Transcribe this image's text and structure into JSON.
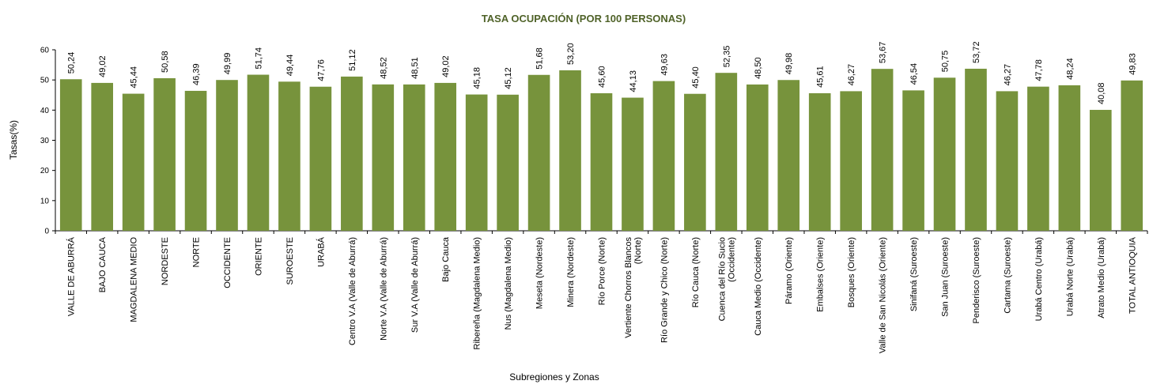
{
  "chart_data": {
    "type": "bar",
    "title": "TASA OCUPACIÓN (POR 100 PERSONAS)",
    "xlabel": "Subregiones y Zonas",
    "ylabel": "Tasas(%)",
    "ylim": [
      0,
      60
    ],
    "yticks": [
      0,
      10,
      20,
      30,
      40,
      50,
      60
    ],
    "grid": false,
    "legend": "none",
    "colors": {
      "bar": "#77933C",
      "title": "#4F6228"
    },
    "categories": [
      [
        "VALLE DE ABURRÁ"
      ],
      [
        "BAJO CAUCA"
      ],
      [
        "MAGDALENA MEDIO"
      ],
      [
        "NORDESTE"
      ],
      [
        "NORTE"
      ],
      [
        "OCCIDENTE"
      ],
      [
        "ORIENTE"
      ],
      [
        "SUROESTE"
      ],
      [
        "URABÁ"
      ],
      [
        "Centro V.A (Valle de Aburrá)"
      ],
      [
        "Norte V.A (Valle de Aburrá)"
      ],
      [
        "Sur V.A (Valle de Aburrá)"
      ],
      [
        "Bajo Cauca"
      ],
      [
        "Ribereña  (Magdalena Medio)"
      ],
      [
        "Nus  (Magdalena Medio)"
      ],
      [
        "Meseta  (Nordeste)"
      ],
      [
        "Minera  (Nordeste)"
      ],
      [
        "Río Porce  (Norte)"
      ],
      [
        "Vertiente Chorros Blancos",
        "(Norte)"
      ],
      [
        "Río Grande y Chico  (Norte)"
      ],
      [
        "Río Cauca  (Norte)"
      ],
      [
        "Cuenca del Río Sucio",
        "(Occidente)"
      ],
      [
        "Cauca Medio  (Occidente)"
      ],
      [
        "Páramo  (Oriente)"
      ],
      [
        "Embalses  (Oriente)"
      ],
      [
        "Bosques  (Oriente)"
      ],
      [
        "Valle de San Nicolás  (Oriente)"
      ],
      [
        "Sinifaná  (Suroeste)"
      ],
      [
        "San Juan  (Suroeste)"
      ],
      [
        "Penderisco  (Suroeste)"
      ],
      [
        "Cartama  (Suroeste)"
      ],
      [
        "Urabá Centro  (Urabá)"
      ],
      [
        "Urabá Norte  (Urabá)"
      ],
      [
        "Atrato Medio  (Urabá)"
      ],
      [
        "TOTAL ANTIOQUIA"
      ]
    ],
    "values": [
      50.24,
      49.02,
      45.44,
      50.58,
      46.39,
      49.99,
      51.74,
      49.44,
      47.76,
      51.12,
      48.52,
      48.51,
      49.02,
      45.18,
      45.12,
      51.68,
      53.2,
      45.6,
      44.13,
      49.63,
      45.4,
      52.35,
      48.5,
      49.98,
      45.61,
      46.27,
      53.67,
      46.54,
      50.75,
      53.72,
      46.27,
      47.78,
      48.24,
      40.08,
      49.83
    ],
    "value_labels": [
      "50,24",
      "49,02",
      "45,44",
      "50,58",
      "46,39",
      "49,99",
      "51,74",
      "49,44",
      "47,76",
      "51,12",
      "48,52",
      "48,51",
      "49,02",
      "45,18",
      "45,12",
      "51,68",
      "53,20",
      "45,60",
      "44,13",
      "49,63",
      "45,40",
      "52,35",
      "48,50",
      "49,98",
      "45,61",
      "46,27",
      "53,67",
      "46,54",
      "50,75",
      "53,72",
      "46,27",
      "47,78",
      "48,24",
      "40,08",
      "49,83"
    ]
  }
}
